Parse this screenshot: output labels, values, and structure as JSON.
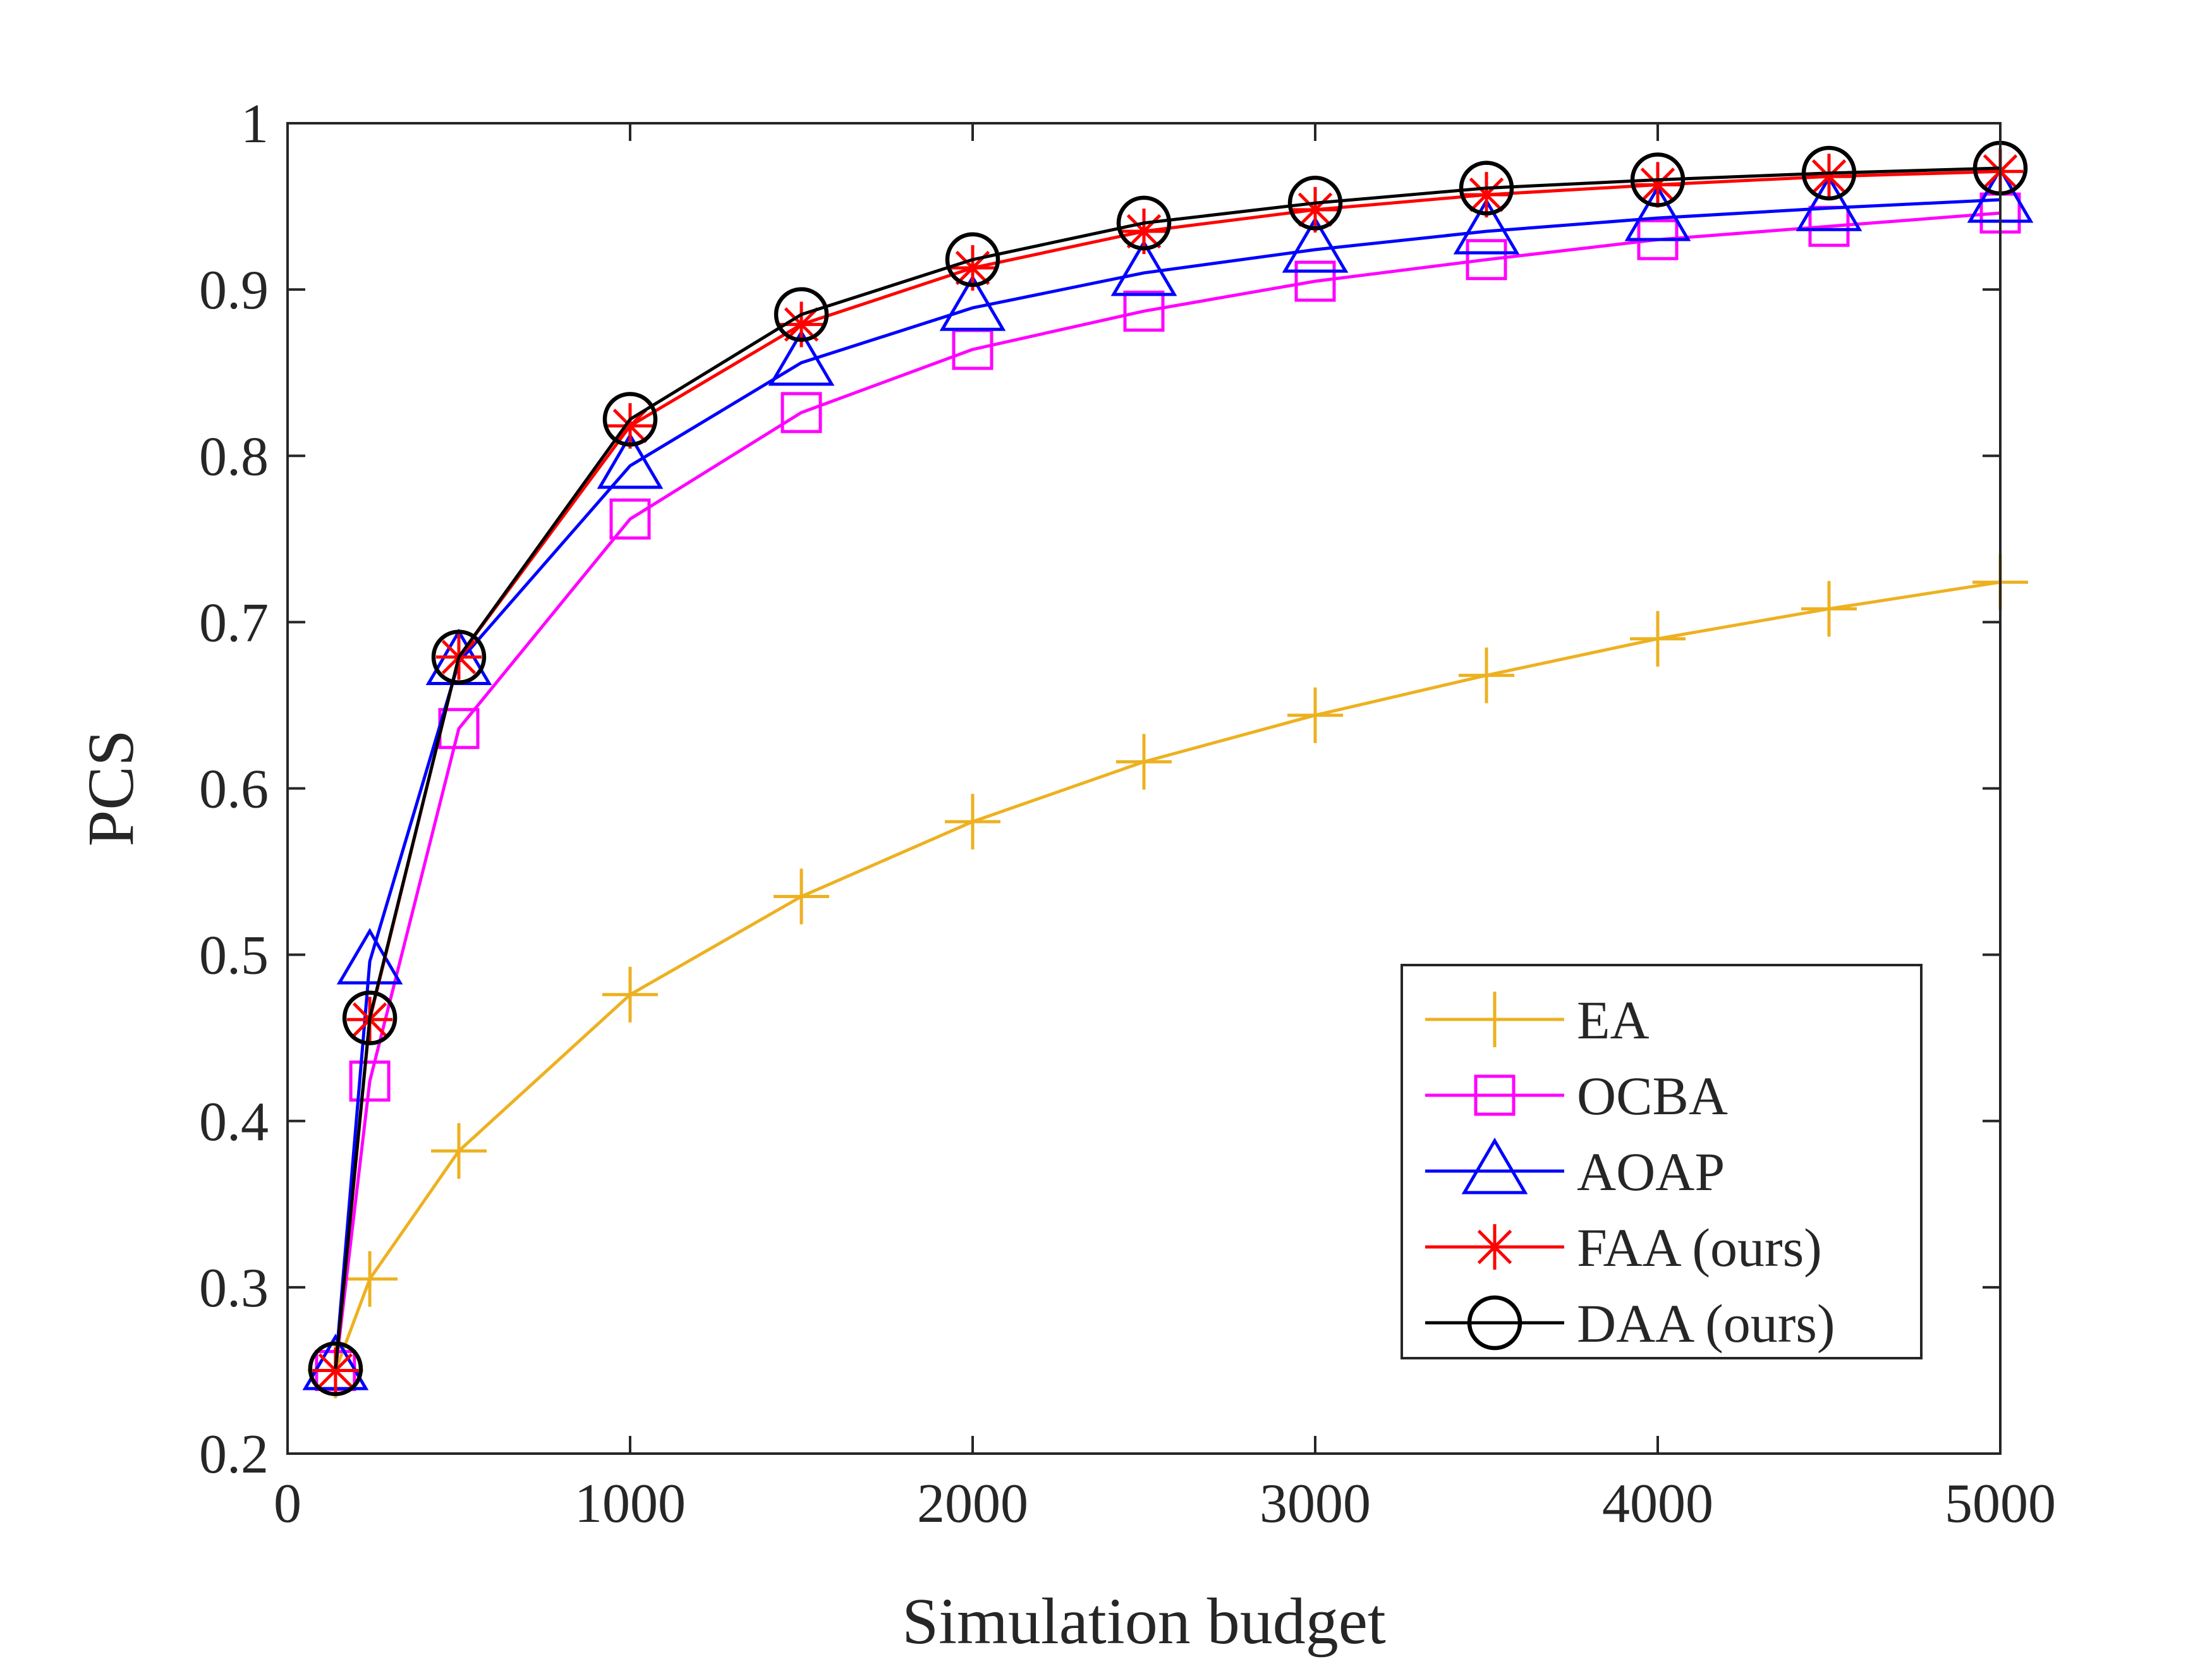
{
  "chart_data": {
    "type": "line",
    "xlabel": "Simulation budget",
    "ylabel": "PCS",
    "xlim": [
      0,
      5000
    ],
    "ylim": [
      0.2,
      1
    ],
    "xticks": [
      0,
      1000,
      2000,
      3000,
      4000,
      5000
    ],
    "xtick_labels": [
      "0",
      "1000",
      "2000",
      "3000",
      "4000",
      "5000"
    ],
    "yticks": [
      0.2,
      0.3,
      0.4,
      0.5,
      0.6,
      0.7,
      0.8,
      0.9,
      1
    ],
    "ytick_labels": [
      "0.2",
      "0.3",
      "0.4",
      "0.5",
      "0.6",
      "0.7",
      "0.8",
      "0.9",
      "1"
    ],
    "grid": false,
    "legend_position": "bottom-right",
    "series": [
      {
        "name": "EA",
        "color": "#EDB120",
        "marker": "plus",
        "x": [
          140,
          240,
          500,
          1000,
          1500,
          2000,
          2500,
          3000,
          3500,
          4000,
          4500,
          5000
        ],
        "y": [
          0.25,
          0.305,
          0.382,
          0.476,
          0.535,
          0.58,
          0.616,
          0.644,
          0.668,
          0.69,
          0.708,
          0.724
        ]
      },
      {
        "name": "OCBA",
        "color": "#FF00FF",
        "marker": "square",
        "x": [
          140,
          240,
          500,
          1000,
          1500,
          2000,
          2500,
          3000,
          3500,
          4000,
          4500,
          5000
        ],
        "y": [
          0.25,
          0.424,
          0.636,
          0.762,
          0.826,
          0.864,
          0.887,
          0.905,
          0.918,
          0.93,
          0.938,
          0.946
        ]
      },
      {
        "name": "AOAP",
        "color": "#0000FF",
        "marker": "triangle",
        "x": [
          140,
          240,
          500,
          1000,
          1500,
          2000,
          2500,
          3000,
          3500,
          4000,
          4500,
          5000
        ],
        "y": [
          0.252,
          0.496,
          0.676,
          0.794,
          0.856,
          0.889,
          0.91,
          0.924,
          0.935,
          0.943,
          0.949,
          0.954
        ]
      },
      {
        "name": "FAA (ours)",
        "color": "#FF0000",
        "marker": "asterisk",
        "x": [
          140,
          240,
          500,
          1000,
          1500,
          2000,
          2500,
          3000,
          3500,
          4000,
          4500,
          5000
        ],
        "y": [
          0.25,
          0.461,
          0.679,
          0.818,
          0.879,
          0.913,
          0.935,
          0.948,
          0.957,
          0.963,
          0.968,
          0.971
        ]
      },
      {
        "name": "DAA (ours)",
        "color": "#000000",
        "marker": "circle",
        "x": [
          140,
          240,
          500,
          1000,
          1500,
          2000,
          2500,
          3000,
          3500,
          4000,
          4500,
          5000
        ],
        "y": [
          0.251,
          0.462,
          0.679,
          0.822,
          0.885,
          0.918,
          0.94,
          0.952,
          0.961,
          0.966,
          0.97,
          0.973
        ]
      }
    ]
  }
}
